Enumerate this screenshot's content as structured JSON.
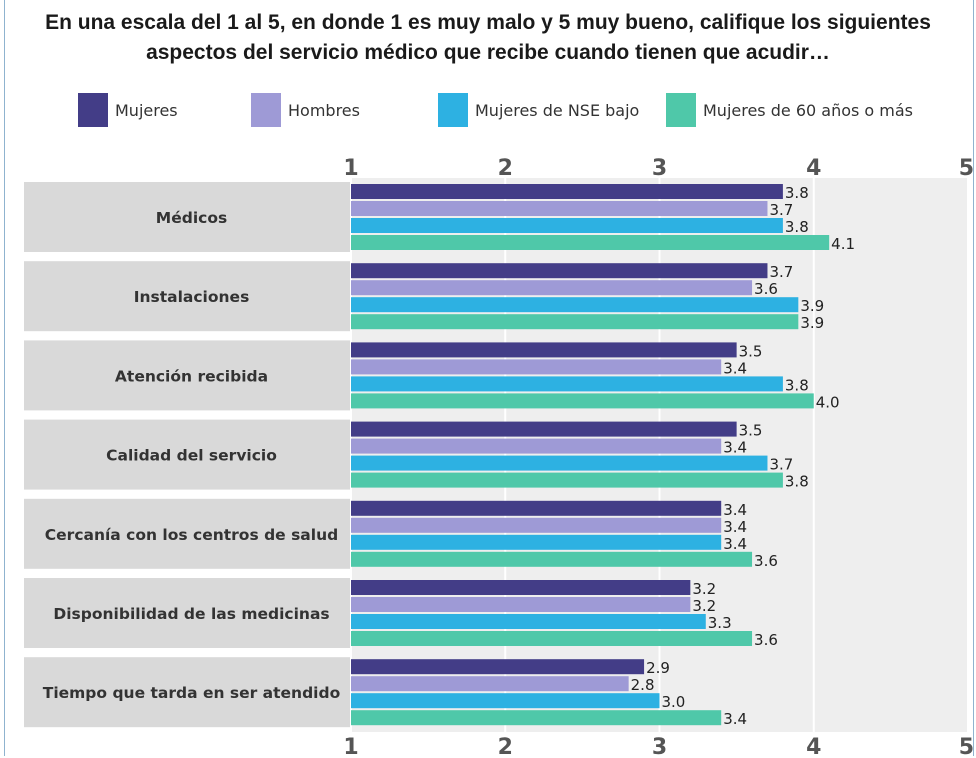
{
  "title": "En una escala del 1 al 5, en donde 1 es muy malo y 5 muy bueno, califique los siguientes aspectos del servicio médico que recibe cuando tienen que acudir…",
  "legend": [
    {
      "label": "Mujeres",
      "color": "#433d87"
    },
    {
      "label": "Hombres",
      "color": "#9e9ad6"
    },
    {
      "label": "Mujeres de NSE bajo",
      "color": "#2db1e2"
    },
    {
      "label": "Mujeres de 60 años o más",
      "color": "#4fc8a9"
    }
  ],
  "chart_data": {
    "type": "bar",
    "orientation": "horizontal",
    "title": "En una escala del 1 al 5, en donde 1 es muy malo y 5 muy bueno, califique los siguientes aspectos del servicio médico que recibe cuando tienen que acudir…",
    "categories": [
      "Médicos",
      "Instalaciones",
      "Atención recibida",
      "Calidad del servicio",
      "Cercanía con los centros de salud",
      "Disponibilidad de las medicinas",
      "Tiempo que tarda en ser atendido"
    ],
    "series": [
      {
        "name": "Mujeres",
        "color": "#433d87",
        "values": [
          3.8,
          3.7,
          3.5,
          3.5,
          3.4,
          3.2,
          2.9
        ]
      },
      {
        "name": "Hombres",
        "color": "#9e9ad6",
        "values": [
          3.7,
          3.6,
          3.4,
          3.4,
          3.4,
          3.2,
          2.8
        ]
      },
      {
        "name": "Mujeres de NSE bajo",
        "color": "#2db1e2",
        "values": [
          3.8,
          3.9,
          3.8,
          3.7,
          3.4,
          3.3,
          3.0
        ]
      },
      {
        "name": "Mujeres de 60 años o más",
        "color": "#4fc8a9",
        "values": [
          4.1,
          3.9,
          4.0,
          3.8,
          3.6,
          3.6,
          3.4
        ]
      }
    ],
    "value_labels": [
      [
        "3.8",
        "3.7",
        "3.5",
        "3.5",
        "3.4",
        "3.2",
        "2.9"
      ],
      [
        "3.7",
        "3.6",
        "3.4",
        "3.4",
        "3.4",
        "3.2",
        "2.8"
      ],
      [
        "3.8",
        "3.9",
        "3.8",
        "3.7",
        "3.4",
        "3.3",
        "3.0"
      ],
      [
        "4.1",
        "3.9",
        "4.0",
        "3.8",
        "3.6",
        "3.6",
        "3.4"
      ]
    ],
    "xlim": [
      1,
      5
    ],
    "xticks": [
      "1",
      "2",
      "3",
      "4",
      "5"
    ],
    "grid": true,
    "legend_position": "top"
  }
}
